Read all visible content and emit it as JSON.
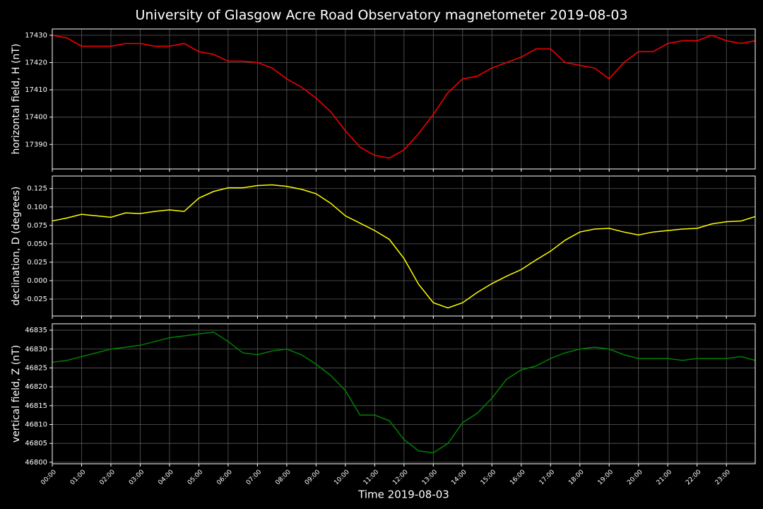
{
  "title": "University of Glasgow Acre Road Observatory magnetometer 2019-08-03",
  "chart_data": [
    {
      "type": "line",
      "ylabel": "horizontal field, H (nT)",
      "color": "#ff0000",
      "grid": true,
      "x": [
        "00:00",
        "00:30",
        "01:00",
        "01:30",
        "02:00",
        "02:30",
        "03:00",
        "03:30",
        "04:00",
        "04:30",
        "05:00",
        "05:30",
        "06:00",
        "06:30",
        "07:00",
        "07:30",
        "08:00",
        "08:30",
        "09:00",
        "09:30",
        "10:00",
        "10:30",
        "11:00",
        "11:30",
        "12:00",
        "12:30",
        "13:00",
        "13:30",
        "14:00",
        "14:30",
        "15:00",
        "15:30",
        "16:00",
        "16:30",
        "17:00",
        "17:30",
        "18:00",
        "18:30",
        "19:00",
        "19:30",
        "20:00",
        "20:30",
        "21:00",
        "21:30",
        "22:00",
        "22:30",
        "23:00",
        "23:30",
        "23:59"
      ],
      "values": [
        17430,
        17429,
        17426,
        17426,
        17426,
        17427,
        17427,
        17426,
        17426,
        17427,
        17424,
        17423,
        17420.5,
        17420.5,
        17420,
        17418,
        17414,
        17411,
        17407,
        17402,
        17395,
        17389,
        17386,
        17385,
        17388,
        17394,
        17401,
        17409,
        17414,
        17415,
        17418,
        17420,
        17422,
        17425,
        17425,
        17420,
        17419,
        17418,
        17414,
        17420,
        17424,
        17424,
        17427,
        17428,
        17428,
        17430,
        17428,
        17427,
        17428
      ],
      "xlim": [
        "00:00",
        "23:59"
      ],
      "xticks": [
        "00:00",
        "01:00",
        "02:00",
        "03:00",
        "04:00",
        "05:00",
        "06:00",
        "07:00",
        "08:00",
        "09:00",
        "10:00",
        "11:00",
        "12:00",
        "13:00",
        "14:00",
        "15:00",
        "16:00",
        "17:00",
        "18:00",
        "19:00",
        "20:00",
        "21:00",
        "22:00",
        "23:00"
      ],
      "ylim": [
        17381,
        17432.3
      ],
      "yticks": [
        17390,
        17400,
        17410,
        17420,
        17430
      ]
    },
    {
      "type": "line",
      "ylabel": "declination, D (degrees)",
      "color": "#ffff00",
      "grid": true,
      "x": [
        "00:00",
        "00:30",
        "01:00",
        "01:30",
        "02:00",
        "02:30",
        "03:00",
        "03:30",
        "04:00",
        "04:30",
        "05:00",
        "05:30",
        "06:00",
        "06:30",
        "07:00",
        "07:30",
        "08:00",
        "08:30",
        "09:00",
        "09:30",
        "10:00",
        "10:30",
        "11:00",
        "11:30",
        "12:00",
        "12:30",
        "13:00",
        "13:30",
        "14:00",
        "14:30",
        "15:00",
        "15:30",
        "16:00",
        "16:30",
        "17:00",
        "17:30",
        "18:00",
        "18:30",
        "19:00",
        "19:30",
        "20:00",
        "20:30",
        "21:00",
        "21:30",
        "22:00",
        "22:30",
        "23:00",
        "23:30",
        "23:59"
      ],
      "values": [
        0.081,
        0.085,
        0.09,
        0.088,
        0.086,
        0.092,
        0.091,
        0.094,
        0.096,
        0.094,
        0.112,
        0.121,
        0.126,
        0.126,
        0.129,
        0.13,
        0.128,
        0.124,
        0.118,
        0.105,
        0.088,
        0.078,
        0.068,
        0.056,
        0.03,
        -0.005,
        -0.03,
        -0.037,
        -0.03,
        -0.016,
        -0.004,
        0.006,
        0.015,
        0.028,
        0.04,
        0.055,
        0.066,
        0.07,
        0.071,
        0.066,
        0.062,
        0.066,
        0.068,
        0.07,
        0.071,
        0.077,
        0.08,
        0.081,
        0.087
      ],
      "xlim": [
        "00:00",
        "23:59"
      ],
      "xticks": [
        "00:00",
        "01:00",
        "02:00",
        "03:00",
        "04:00",
        "05:00",
        "06:00",
        "07:00",
        "08:00",
        "09:00",
        "10:00",
        "11:00",
        "12:00",
        "13:00",
        "14:00",
        "15:00",
        "16:00",
        "17:00",
        "18:00",
        "19:00",
        "20:00",
        "21:00",
        "22:00",
        "23:00"
      ],
      "ylim": [
        -0.048,
        0.142
      ],
      "yticks": [
        -0.025,
        {
          "value": 0,
          "label": "0.000"
        },
        0.025,
        {
          "value": 0.05,
          "label": "0.050"
        },
        0.075,
        {
          "value": 0.1,
          "label": "0.100"
        },
        0.125
      ]
    },
    {
      "type": "line",
      "ylabel": "vertical field, Z (nT)",
      "xlabel": "Time 2019-08-03",
      "color": "#008000",
      "grid": true,
      "x": [
        "00:00",
        "00:30",
        "01:00",
        "01:30",
        "02:00",
        "02:30",
        "03:00",
        "03:30",
        "04:00",
        "04:30",
        "05:00",
        "05:30",
        "06:00",
        "06:30",
        "07:00",
        "07:30",
        "08:00",
        "08:30",
        "09:00",
        "09:30",
        "10:00",
        "10:30",
        "11:00",
        "11:30",
        "12:00",
        "12:30",
        "13:00",
        "13:30",
        "14:00",
        "14:30",
        "15:00",
        "15:30",
        "16:00",
        "16:30",
        "17:00",
        "17:30",
        "18:00",
        "18:30",
        "19:00",
        "19:30",
        "20:00",
        "20:30",
        "21:00",
        "21:30",
        "22:00",
        "22:30",
        "23:00",
        "23:30",
        "23:59"
      ],
      "values": [
        46826.5,
        46827,
        46828,
        46829,
        46830,
        46830.5,
        46831,
        46832,
        46833,
        46833.5,
        46834,
        46834.5,
        46832,
        46829,
        46828.5,
        46829.5,
        46830,
        46828.5,
        46826,
        46823,
        46819,
        46812.5,
        46812.5,
        46811,
        46806,
        46803,
        46802.5,
        46805,
        46810.5,
        46813,
        46817,
        46822,
        46824.5,
        46825.5,
        46827.5,
        46829,
        46830,
        46830.5,
        46830,
        46828.5,
        46827.5,
        46827.5,
        46827.5,
        46827,
        46827.5,
        46827.5,
        46827.5,
        46828,
        46827
      ],
      "xlim": [
        "00:00",
        "23:59"
      ],
      "xticks": [
        "00:00",
        "01:00",
        "02:00",
        "03:00",
        "04:00",
        "05:00",
        "06:00",
        "07:00",
        "08:00",
        "09:00",
        "10:00",
        "11:00",
        "12:00",
        "13:00",
        "14:00",
        "15:00",
        "16:00",
        "17:00",
        "18:00",
        "19:00",
        "20:00",
        "21:00",
        "22:00",
        "23:00"
      ],
      "ylim": [
        46799.6,
        46836.7
      ],
      "yticks": [
        46800,
        46805,
        46810,
        46815,
        46820,
        46825,
        46830,
        46835
      ]
    }
  ]
}
